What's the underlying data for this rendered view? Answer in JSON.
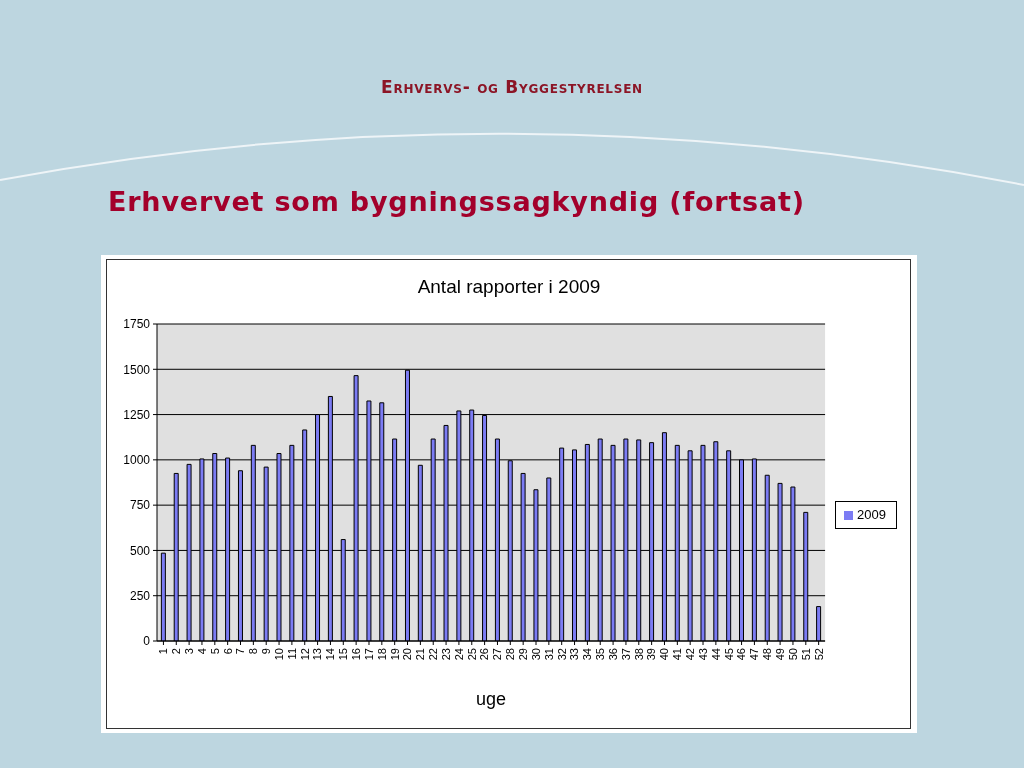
{
  "chart_data": {
    "type": "bar",
    "title": "Erhvervet som bygningssagkyndig (fortsat)",
    "subtitle": "Antal rapporter i 2009",
    "xlabel": "uge",
    "annotations": [
      "Erhvervs- og Byggestyrelsen"
    ],
    "categories": [
      "1",
      "2",
      "3",
      "4",
      "5",
      "6",
      "7",
      "8",
      "9",
      "10",
      "11",
      "12",
      "13",
      "14",
      "15",
      "16",
      "17",
      "18",
      "19",
      "20",
      "21",
      "22",
      "23",
      "24",
      "25",
      "26",
      "27",
      "28",
      "29",
      "30",
      "31",
      "32",
      "33",
      "34",
      "35",
      "36",
      "37",
      "38",
      "39",
      "40",
      "41",
      "42",
      "43",
      "44",
      "45",
      "46",
      "47",
      "48",
      "49",
      "50",
      "51",
      "52"
    ],
    "series": [
      {
        "name": "2009",
        "color": "#7c7cf4",
        "values": [
          485,
          925,
          975,
          1005,
          1035,
          1010,
          940,
          1080,
          960,
          1035,
          1080,
          1165,
          1250,
          1350,
          560,
          1465,
          1325,
          1315,
          1115,
          1495,
          970,
          1115,
          1190,
          1270,
          1275,
          1245,
          1115,
          995,
          925,
          835,
          900,
          1065,
          1055,
          1085,
          1115,
          1080,
          1115,
          1110,
          1095,
          1150,
          1080,
          1050,
          1080,
          1100,
          1050,
          1000,
          1005,
          915,
          870,
          850,
          710,
          190
        ]
      }
    ],
    "ylim": [
      0,
      1750
    ],
    "yticks": [
      0,
      250,
      500,
      750,
      1000,
      1250,
      1500,
      1750
    ],
    "grid": "y",
    "legend": "right"
  }
}
